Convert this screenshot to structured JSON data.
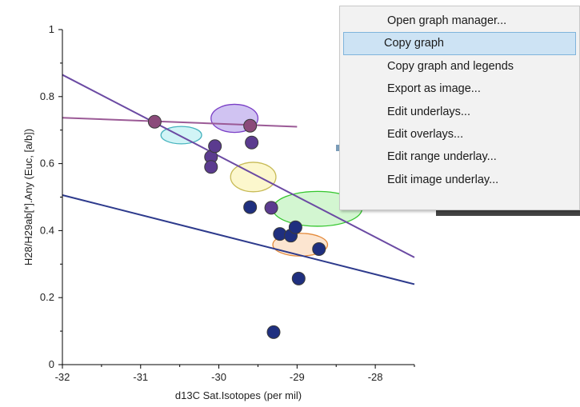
{
  "context_menu": {
    "items": [
      {
        "label": "Open graph manager...",
        "highlighted": false
      },
      {
        "label": "Copy graph",
        "highlighted": true
      },
      {
        "label": "Copy graph and legends",
        "highlighted": false
      },
      {
        "label": "Export as image...",
        "highlighted": false
      },
      {
        "label": "Edit underlays...",
        "highlighted": false
      },
      {
        "label": "Edit overlays...",
        "highlighted": false
      },
      {
        "label": "Edit range underlay...",
        "highlighted": false
      },
      {
        "label": "Edit image underlay...",
        "highlighted": false
      }
    ],
    "highlight_color": "#cde3f4"
  },
  "chart_data": {
    "type": "scatter",
    "xlabel": "d13C Sat.Isotopes (per mil)",
    "ylabel": "H28/H29ab[*].Any (Euc, [a/b])",
    "xlim": [
      -32,
      -27.5
    ],
    "ylim": [
      0,
      1
    ],
    "xticks": [
      -32,
      -31,
      -30,
      -29,
      -28
    ],
    "xtick_labels": [
      "-32",
      "-31",
      "-30",
      "-29",
      "-28"
    ],
    "yticks": [
      0,
      0.2,
      0.4,
      0.6,
      0.8,
      1
    ],
    "ytick_labels": [
      "0",
      "0.2",
      "0.4",
      "0.6",
      "0.8",
      "1"
    ],
    "grid": false,
    "series": [
      {
        "color": "#1f2f7f",
        "points": [
          {
            "x": -29.6,
            "y": 0.47
          },
          {
            "x": -29.22,
            "y": 0.39
          },
          {
            "x": -29.08,
            "y": 0.385
          },
          {
            "x": -29.02,
            "y": 0.41
          },
          {
            "x": -28.72,
            "y": 0.345
          },
          {
            "x": -28.98,
            "y": 0.257
          },
          {
            "x": -29.3,
            "y": 0.097
          }
        ]
      },
      {
        "color": "#5b3b8f",
        "points": [
          {
            "x": -30.1,
            "y": 0.62
          },
          {
            "x": -30.1,
            "y": 0.59
          },
          {
            "x": -30.05,
            "y": 0.652
          },
          {
            "x": -29.58,
            "y": 0.663
          },
          {
            "x": -29.33,
            "y": 0.468
          }
        ]
      },
      {
        "color": "#8b4a7a",
        "points": [
          {
            "x": -30.82,
            "y": 0.725
          },
          {
            "x": -29.6,
            "y": 0.713
          }
        ]
      }
    ],
    "regression_lines": [
      {
        "color": "#2d3a8c",
        "from": {
          "x": -32,
          "y": 0.506
        },
        "to": {
          "x": -27.5,
          "y": 0.24
        }
      },
      {
        "color": "#6b4aa3",
        "from": {
          "x": -32,
          "y": 0.865
        },
        "to": {
          "x": -27.5,
          "y": 0.32
        }
      },
      {
        "color": "#9b5a96",
        "from": {
          "x": -32,
          "y": 0.737
        },
        "to": {
          "x": -29.0,
          "y": 0.71
        }
      }
    ],
    "ellipses": [
      {
        "cx": -30.48,
        "cy": 0.685,
        "rx": 0.26,
        "ry": 0.026,
        "fill": "#c9f2f4",
        "stroke": "#46b3be"
      },
      {
        "cx": -29.8,
        "cy": 0.735,
        "rx": 0.3,
        "ry": 0.042,
        "fill": "#c8b8f0",
        "stroke": "#7a3fc6"
      },
      {
        "cx": -29.56,
        "cy": 0.56,
        "rx": 0.29,
        "ry": 0.044,
        "fill": "#fbf6c4",
        "stroke": "#c8bb57"
      },
      {
        "cx": -28.74,
        "cy": 0.465,
        "rx": 0.57,
        "ry": 0.052,
        "fill": "#cbf5c9",
        "stroke": "#34c62e"
      },
      {
        "cx": -28.96,
        "cy": 0.358,
        "rx": 0.35,
        "ry": 0.034,
        "fill": "#fbe0c8",
        "stroke": "#e48a3a"
      }
    ]
  }
}
